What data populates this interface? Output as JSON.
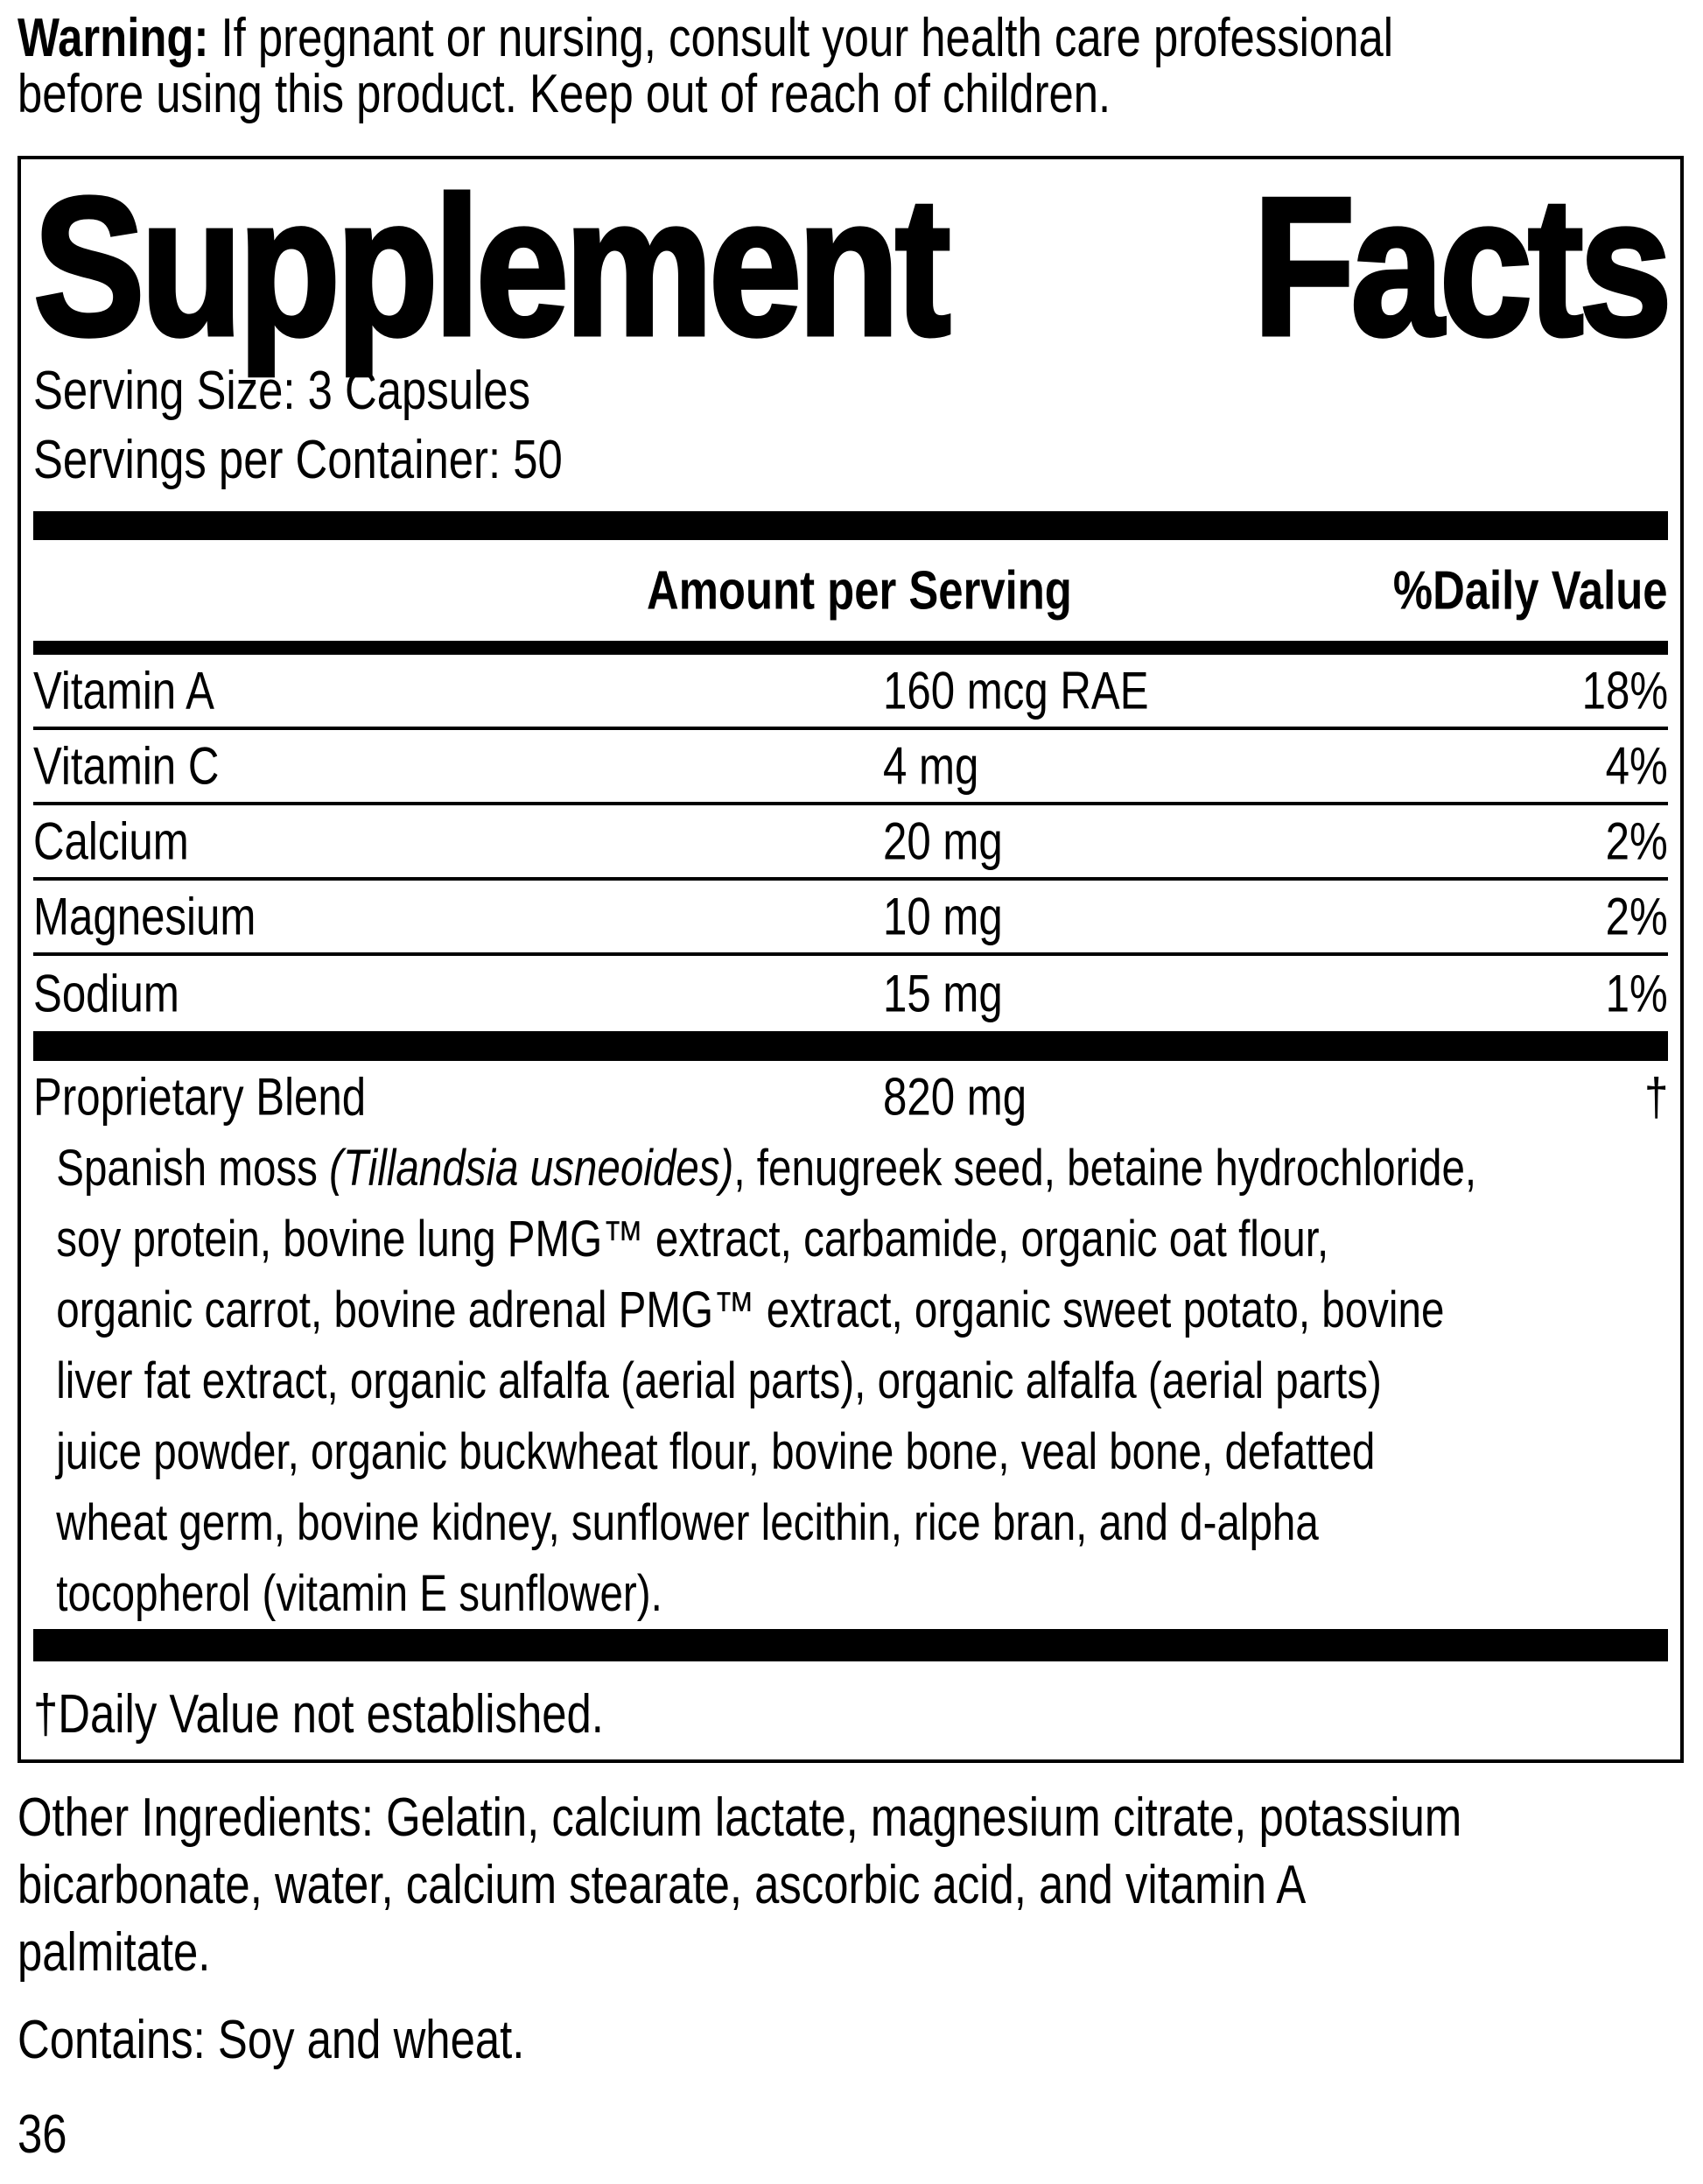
{
  "warning": {
    "label": "Warning:",
    "text": " If pregnant or nursing, consult your health care professional\nbefore using this product. Keep out of reach of children."
  },
  "panel": {
    "title_left": "Supplement",
    "title_right": "Facts",
    "serving_size": "Serving Size: 3 Capsules",
    "servings_per_container": "Servings per Container: 50",
    "columns": {
      "amount": "Amount per Serving",
      "daily_value": "%Daily Value"
    },
    "nutrients": [
      {
        "label": "Vitamin A",
        "amount": "160 mcg RAE",
        "daily_value": "18%"
      },
      {
        "label": "Vitamin C",
        "amount": "4 mg",
        "daily_value": "4%"
      },
      {
        "label": "Calcium",
        "amount": "20 mg",
        "daily_value": "2%"
      },
      {
        "label": "Magnesium",
        "amount": "10 mg",
        "daily_value": "2%"
      },
      {
        "label": "Sodium",
        "amount": "15 mg",
        "daily_value": "1%"
      }
    ],
    "proprietary_blend": {
      "label": "Proprietary Blend",
      "amount": "820 mg",
      "daily_value": "†",
      "description_pre": "Spanish moss ",
      "description_italic": "(Tillandsia usneoides)",
      "description_post": ", fenugreek seed, betaine hydrochloride,\nsoy protein, bovine lung PMG™ extract, carbamide, organic oat flour,\norganic carrot, bovine adrenal PMG™ extract, organic sweet potato, bovine\nliver fat extract, organic alfalfa (aerial parts), organic alfalfa (aerial parts)\njuice powder, organic buckwheat flour, bovine bone, veal bone, defatted\nwheat germ, bovine kidney, sunflower lecithin, rice bran, and d-alpha\ntocopherol (vitamin E sunflower)."
    },
    "footnote": "†Daily Value not established."
  },
  "other_ingredients": "Other Ingredients: Gelatin, calcium lactate, magnesium citrate, potassium\nbicarbonate, water, calcium stearate, ascorbic acid, and vitamin A\npalmitate.",
  "contains": "Contains: Soy and wheat.",
  "page_number": "36",
  "colors": {
    "text": "#000000",
    "background": "#ffffff"
  }
}
